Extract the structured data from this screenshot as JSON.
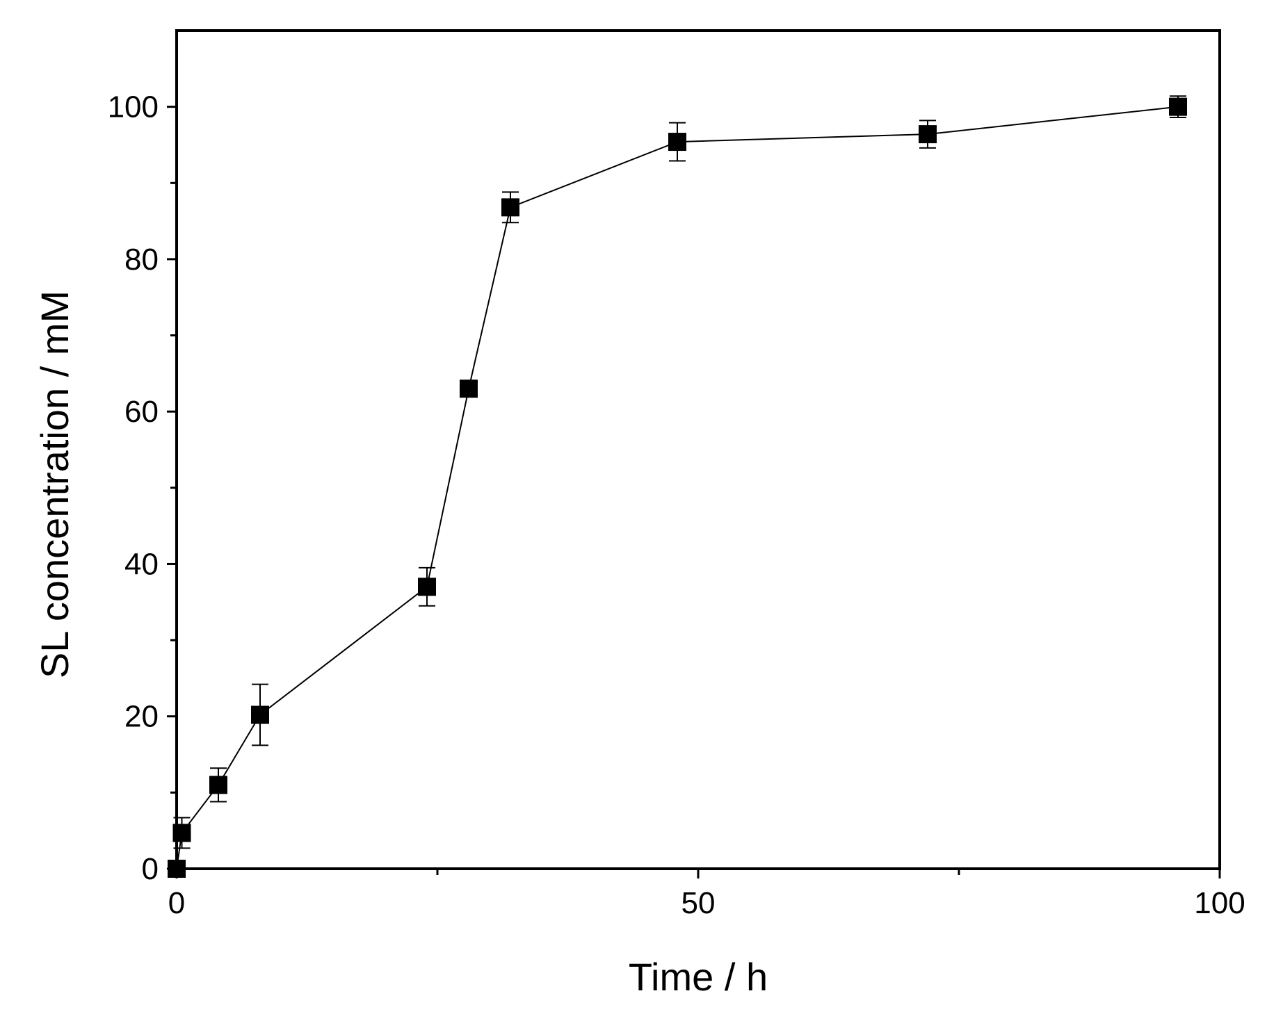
{
  "chart_data": {
    "type": "scatter",
    "title": "",
    "xlabel": "Time / h",
    "ylabel": "SL concentration / mM",
    "xlim": [
      0,
      100
    ],
    "ylim": [
      0,
      110
    ],
    "x_ticks": [
      0,
      50,
      100
    ],
    "x_tick_labels": [
      "0",
      "50",
      "100"
    ],
    "y_ticks": [
      0,
      20,
      40,
      60,
      80,
      100
    ],
    "y_tick_labels": [
      "0",
      "20",
      "40",
      "60",
      "80",
      "100"
    ],
    "grid": false,
    "legend": "none",
    "marker": "square",
    "connected": true,
    "series": [
      {
        "x": [
          0,
          0.5,
          4,
          8,
          24,
          28,
          32,
          48,
          72,
          96
        ],
        "y": [
          0,
          4.7,
          11,
          20.2,
          37,
          63,
          86.8,
          95.4,
          96.4,
          100
        ],
        "y_err": [
          0,
          2.0,
          2.2,
          4.0,
          2.5,
          0,
          2.0,
          2.5,
          1.8,
          1.4
        ]
      }
    ],
    "colors": {
      "marker": "#000000",
      "line": "#000000",
      "axis": "#000000"
    }
  }
}
